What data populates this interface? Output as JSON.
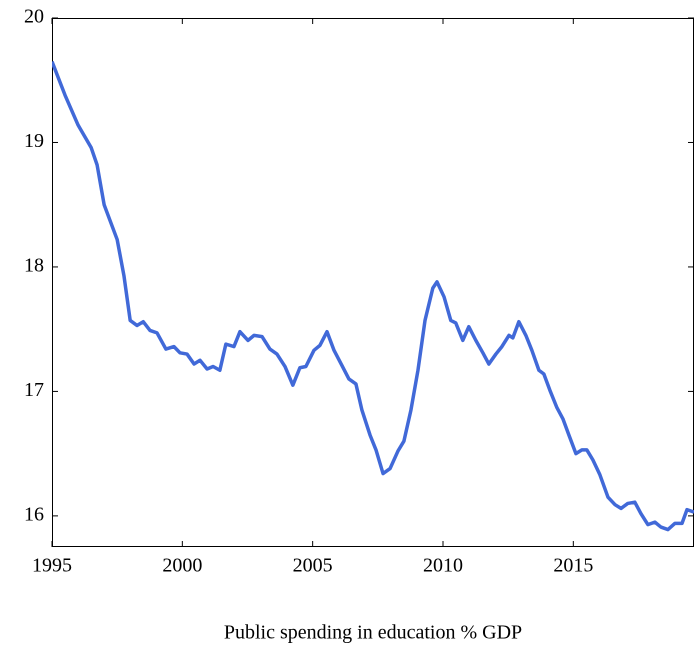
{
  "chart_data": {
    "type": "line",
    "xlabel": "Public spending in education % GDP",
    "xlim": [
      1995,
      2019.63
    ],
    "ylim": [
      15.75,
      20
    ],
    "xticks": [
      1995,
      2000,
      2005,
      2010,
      2015
    ],
    "yticks": [
      16,
      17,
      18,
      19,
      20
    ],
    "series": [
      {
        "color": "#4169d8",
        "x": [
          1995,
          1995.5,
          1996,
          1996.5,
          1996.73,
          1997,
          1997.5,
          1997.76,
          1998,
          1998.26,
          1998.5,
          1998.76,
          1999.03,
          1999.37,
          1999.68,
          1999.91,
          2000.18,
          2000.45,
          2000.68,
          2000.95,
          2001.18,
          2001.44,
          2001.67,
          2001.98,
          2002.21,
          2002.52,
          2002.75,
          2003.06,
          2003.36,
          2003.63,
          2003.94,
          2004.24,
          2004.51,
          2004.74,
          2005.05,
          2005.28,
          2005.55,
          2005.82,
          2006.12,
          2006.39,
          2006.66,
          2006.89,
          2007.2,
          2007.43,
          2007.7,
          2007.97,
          2008.27,
          2008.5,
          2008.77,
          2009.04,
          2009.31,
          2009.61,
          2009.77,
          2010.04,
          2010.3,
          2010.49,
          2010.76,
          2010.99,
          2011.26,
          2011.53,
          2011.76,
          2012.03,
          2012.26,
          2012.53,
          2012.68,
          2012.91,
          2013.18,
          2013.41,
          2013.68,
          2013.87,
          2014.1,
          2014.37,
          2014.6,
          2014.83,
          2015.1,
          2015.33,
          2015.52,
          2015.75,
          2016.02,
          2016.33,
          2016.6,
          2016.83,
          2017.09,
          2017.36,
          2017.59,
          2017.86,
          2018.13,
          2018.36,
          2018.63,
          2018.9,
          2019.17,
          2019.36,
          2019.63
        ],
        "values": [
          19.65,
          19.38,
          19.14,
          18.96,
          18.82,
          18.5,
          18.22,
          17.93,
          17.57,
          17.53,
          17.56,
          17.49,
          17.47,
          17.34,
          17.36,
          17.31,
          17.3,
          17.22,
          17.25,
          17.18,
          17.2,
          17.17,
          17.38,
          17.36,
          17.48,
          17.41,
          17.45,
          17.44,
          17.34,
          17.3,
          17.2,
          17.05,
          17.19,
          17.2,
          17.33,
          17.37,
          17.48,
          17.33,
          17.21,
          17.1,
          17.06,
          16.85,
          16.65,
          16.53,
          16.34,
          16.38,
          16.52,
          16.6,
          16.85,
          17.17,
          17.57,
          17.83,
          17.88,
          17.76,
          17.57,
          17.55,
          17.41,
          17.52,
          17.41,
          17.31,
          17.22,
          17.3,
          17.36,
          17.45,
          17.43,
          17.56,
          17.45,
          17.33,
          17.17,
          17.14,
          17.01,
          16.87,
          16.78,
          16.65,
          16.5,
          16.53,
          16.53,
          16.45,
          16.33,
          16.15,
          16.09,
          16.06,
          16.1,
          16.11,
          16.02,
          15.93,
          15.95,
          15.91,
          15.89,
          15.94,
          15.94,
          16.05,
          16.03
        ]
      }
    ]
  }
}
